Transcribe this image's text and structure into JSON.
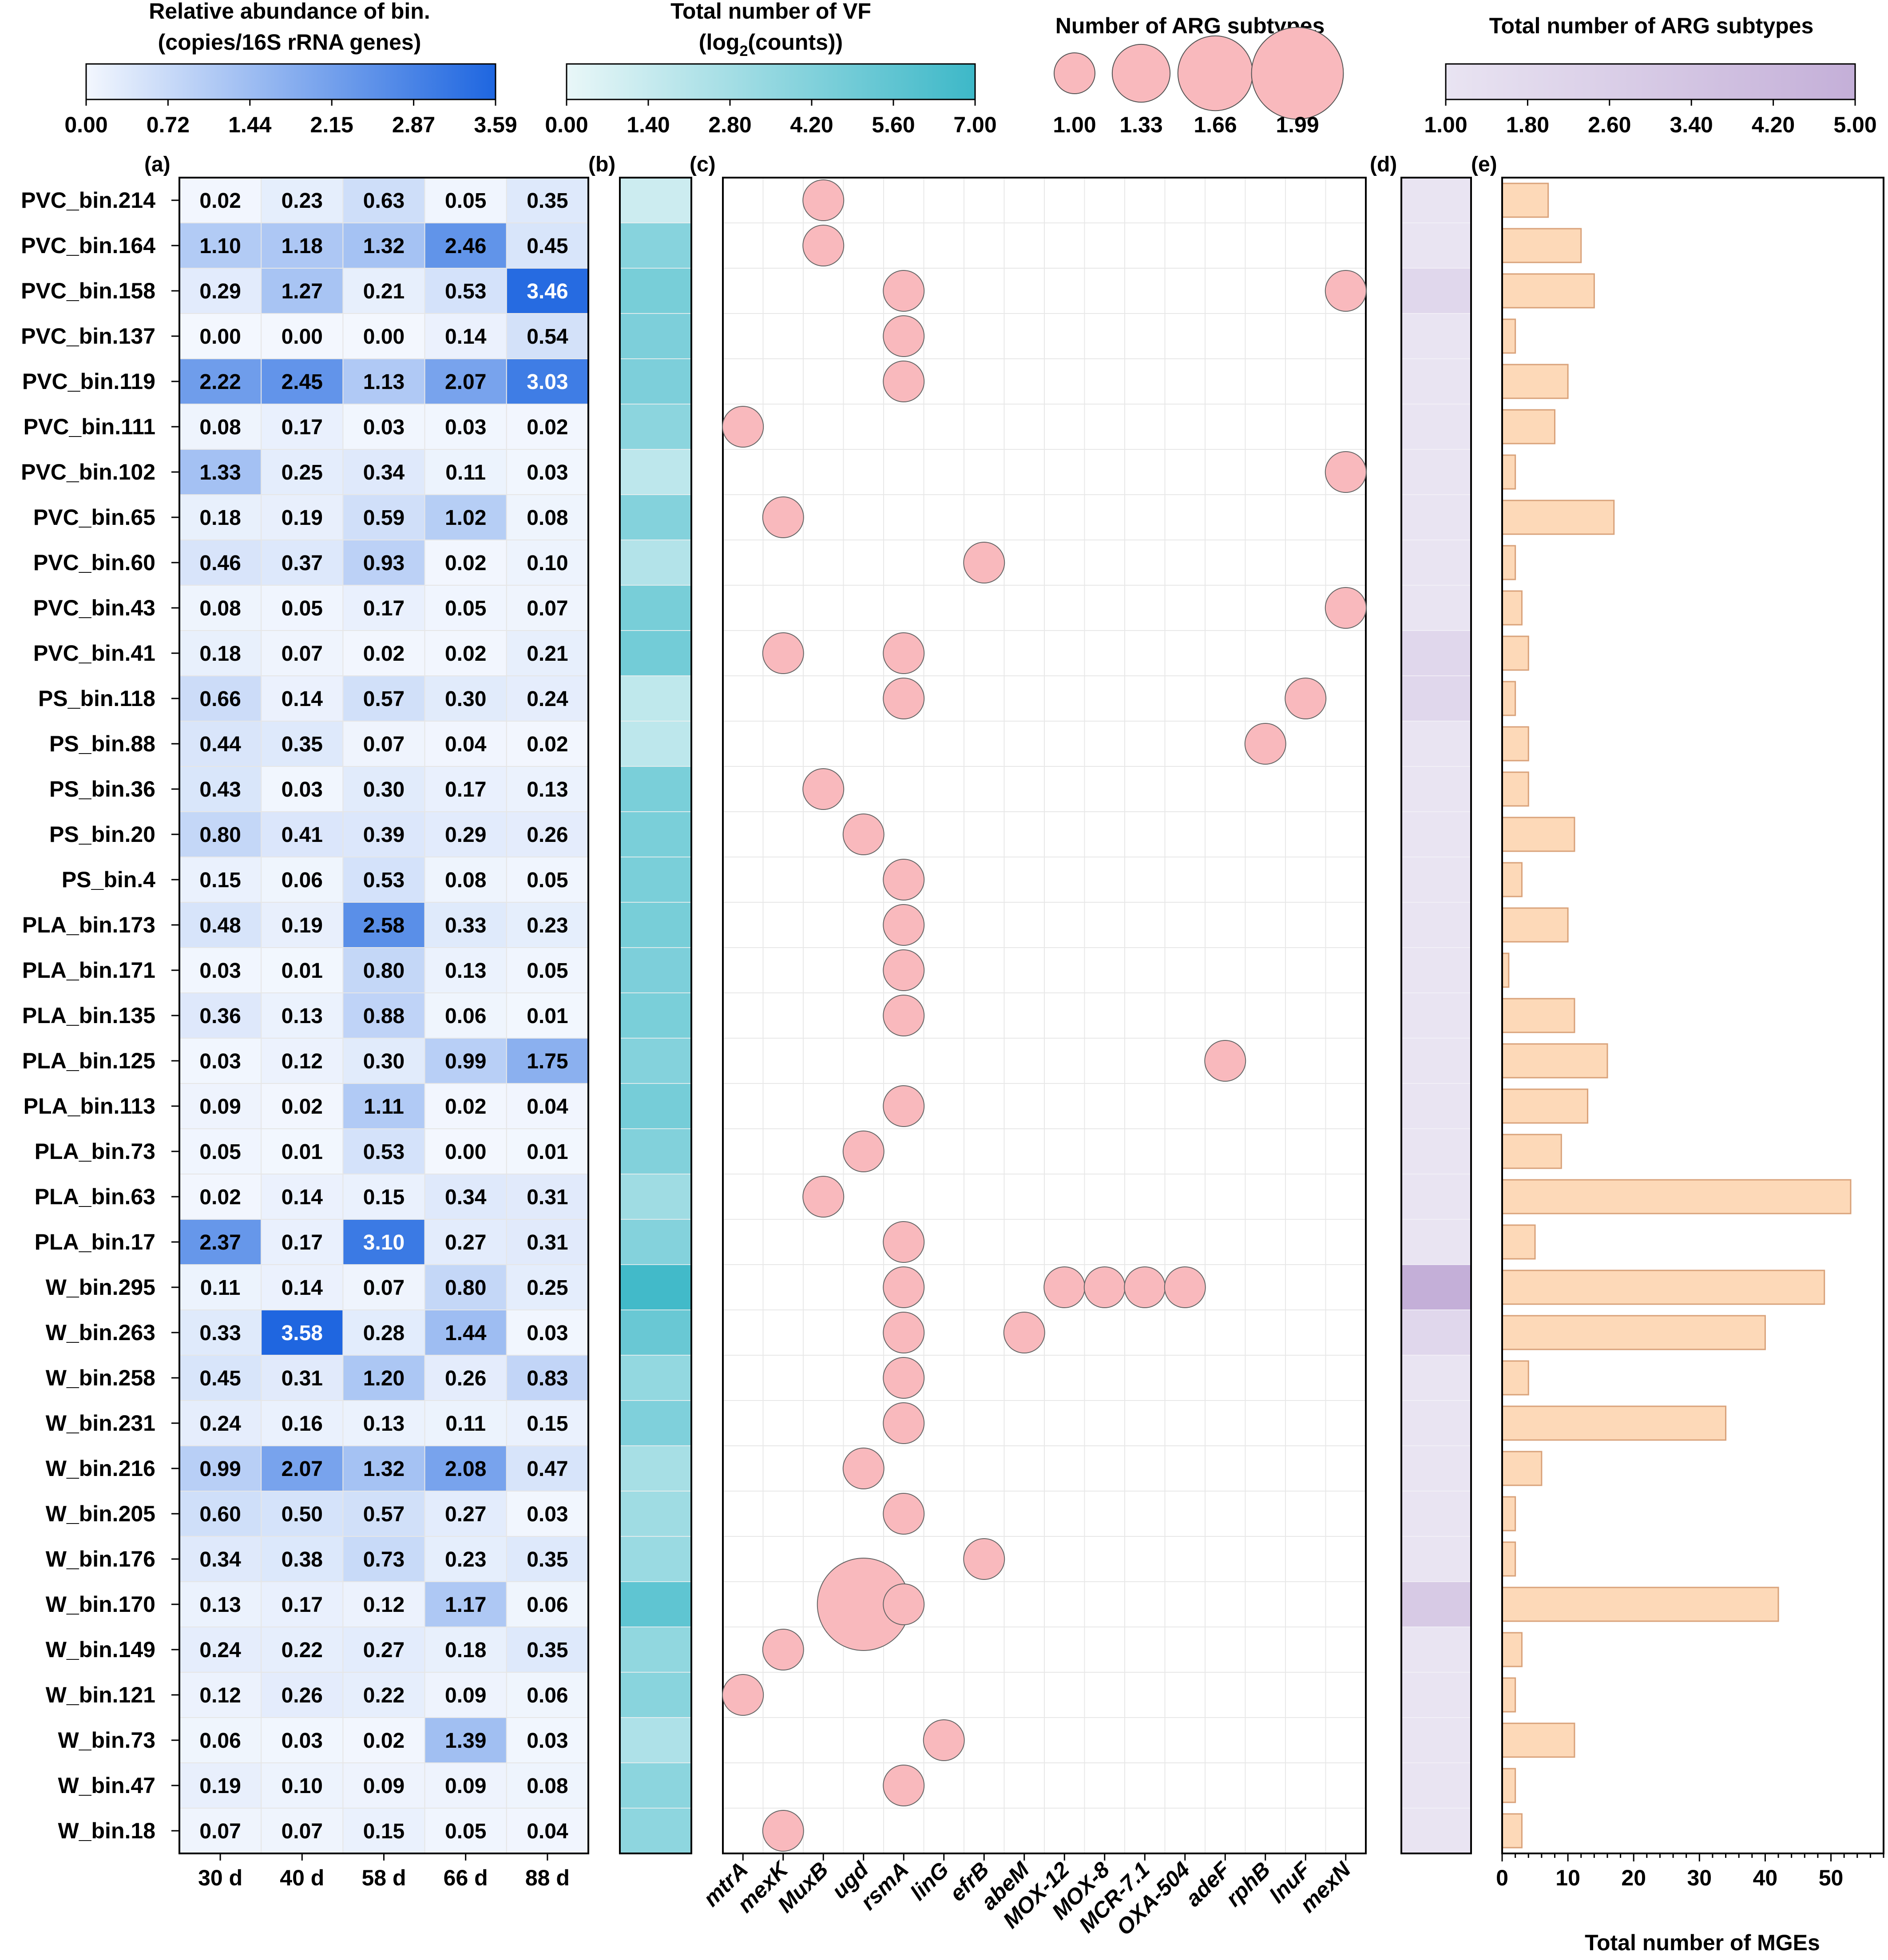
{
  "chart_data": [
    {
      "panel": "(a)",
      "type": "heatmap",
      "legend_title_line1": "Relative abundance of bin.",
      "legend_title_line2": "(copies/16S rRNA genes)",
      "legend_ticks": [
        "0.00",
        "0.72",
        "1.44",
        "2.15",
        "2.87",
        "3.59"
      ],
      "value_range": [
        0.0,
        3.59
      ],
      "color_low": "#f3f7fe",
      "color_high": "#1e66e0",
      "columns": [
        "30 d",
        "40 d",
        "58 d",
        "66 d",
        "88 d"
      ],
      "rows": [
        "PVC_bin.214",
        "PVC_bin.164",
        "PVC_bin.158",
        "PVC_bin.137",
        "PVC_bin.119",
        "PVC_bin.111",
        "PVC_bin.102",
        "PVC_bin.65",
        "PVC_bin.60",
        "PVC_bin.43",
        "PVC_bin.41",
        "PS_bin.118",
        "PS_bin.88",
        "PS_bin.36",
        "PS_bin.20",
        "PS_bin.4",
        "PLA_bin.173",
        "PLA_bin.171",
        "PLA_bin.135",
        "PLA_bin.125",
        "PLA_bin.113",
        "PLA_bin.73",
        "PLA_bin.63",
        "PLA_bin.17",
        "W_bin.295",
        "W_bin.263",
        "W_bin.258",
        "W_bin.231",
        "W_bin.216",
        "W_bin.205",
        "W_bin.176",
        "W_bin.170",
        "W_bin.149",
        "W_bin.121",
        "W_bin.73",
        "W_bin.47",
        "W_bin.18"
      ],
      "values": [
        [
          "0.02",
          "0.23",
          "0.63",
          "0.05",
          "0.35"
        ],
        [
          "1.10",
          "1.18",
          "1.32",
          "2.46",
          "0.45"
        ],
        [
          "0.29",
          "1.27",
          "0.21",
          "0.53",
          "3.46"
        ],
        [
          "0.00",
          "0.00",
          "0.00",
          "0.14",
          "0.54"
        ],
        [
          "2.22",
          "2.45",
          "1.13",
          "2.07",
          "3.03"
        ],
        [
          "0.08",
          "0.17",
          "0.03",
          "0.03",
          "0.02"
        ],
        [
          "1.33",
          "0.25",
          "0.34",
          "0.11",
          "0.03"
        ],
        [
          "0.18",
          "0.19",
          "0.59",
          "1.02",
          "0.08"
        ],
        [
          "0.46",
          "0.37",
          "0.93",
          "0.02",
          "0.10"
        ],
        [
          "0.08",
          "0.05",
          "0.17",
          "0.05",
          "0.07"
        ],
        [
          "0.18",
          "0.07",
          "0.02",
          "0.02",
          "0.21"
        ],
        [
          "0.66",
          "0.14",
          "0.57",
          "0.30",
          "0.24"
        ],
        [
          "0.44",
          "0.35",
          "0.07",
          "0.04",
          "0.02"
        ],
        [
          "0.43",
          "0.03",
          "0.30",
          "0.17",
          "0.13"
        ],
        [
          "0.80",
          "0.41",
          "0.39",
          "0.29",
          "0.26"
        ],
        [
          "0.15",
          "0.06",
          "0.53",
          "0.08",
          "0.05"
        ],
        [
          "0.48",
          "0.19",
          "2.58",
          "0.33",
          "0.23"
        ],
        [
          "0.03",
          "0.01",
          "0.80",
          "0.13",
          "0.05"
        ],
        [
          "0.36",
          "0.13",
          "0.88",
          "0.06",
          "0.01"
        ],
        [
          "0.03",
          "0.12",
          "0.30",
          "0.99",
          "1.75"
        ],
        [
          "0.09",
          "0.02",
          "1.11",
          "0.02",
          "0.04"
        ],
        [
          "0.05",
          "0.01",
          "0.53",
          "0.00",
          "0.01"
        ],
        [
          "0.02",
          "0.14",
          "0.15",
          "0.34",
          "0.31"
        ],
        [
          "2.37",
          "0.17",
          "3.10",
          "0.27",
          "0.31"
        ],
        [
          "0.11",
          "0.14",
          "0.07",
          "0.80",
          "0.25"
        ],
        [
          "0.33",
          "3.58",
          "0.28",
          "1.44",
          "0.03"
        ],
        [
          "0.45",
          "0.31",
          "1.20",
          "0.26",
          "0.83"
        ],
        [
          "0.24",
          "0.16",
          "0.13",
          "0.11",
          "0.15"
        ],
        [
          "0.99",
          "2.07",
          "1.32",
          "2.08",
          "0.47"
        ],
        [
          "0.60",
          "0.50",
          "0.57",
          "0.27",
          "0.03"
        ],
        [
          "0.34",
          "0.38",
          "0.73",
          "0.23",
          "0.35"
        ],
        [
          "0.13",
          "0.17",
          "0.12",
          "1.17",
          "0.06"
        ],
        [
          "0.24",
          "0.22",
          "0.27",
          "0.18",
          "0.35"
        ],
        [
          "0.12",
          "0.26",
          "0.22",
          "0.09",
          "0.06"
        ],
        [
          "0.06",
          "0.03",
          "0.02",
          "1.39",
          "0.03"
        ],
        [
          "0.19",
          "0.10",
          "0.09",
          "0.09",
          "0.08"
        ],
        [
          "0.07",
          "0.07",
          "0.15",
          "0.05",
          "0.04"
        ]
      ]
    },
    {
      "panel": "(b)",
      "type": "heatmap",
      "legend_title_line1": "Total number of VF",
      "legend_title_prefix": "(log",
      "legend_title_sub": "2",
      "legend_title_suffix": "(counts))",
      "legend_ticks": [
        "0.00",
        "1.40",
        "2.80",
        "4.20",
        "5.60",
        "7.00"
      ],
      "value_range": [
        0,
        7
      ],
      "color_low": "#e9f7f8",
      "color_high": "#3db8c8",
      "values": [
        1.2,
        4.0,
        4.6,
        4.4,
        4.4,
        3.8,
        1.8,
        4.1,
        2.2,
        4.6,
        4.8,
        1.7,
        1.8,
        4.5,
        4.5,
        4.5,
        4.6,
        4.4,
        4.5,
        4.1,
        4.7,
        4.2,
        3.0,
        4.1,
        6.8,
        5.2,
        3.5,
        4.3,
        2.7,
        3.0,
        3.2,
        5.6,
        3.6,
        3.9,
        2.4,
        3.8,
        3.7
      ]
    },
    {
      "panel": "(c)",
      "type": "scatter",
      "legend_title": "Number of ARG subtypes",
      "legend_values": [
        1.0,
        1.33,
        1.66,
        1.99
      ],
      "legend_labels": [
        "1.00",
        "1.33",
        "1.66",
        "1.99"
      ],
      "color": "#f9b9bd",
      "genes": [
        "mtrA",
        "mexK",
        "MuxB",
        "ugd",
        "rsmA",
        "linG",
        "efrB",
        "abeM",
        "MOX-12",
        "MOX-8",
        "MCR-7.1",
        "OXA-504",
        "adeF",
        "rphB",
        "lnuF",
        "mexN"
      ],
      "points": [
        {
          "row": 0,
          "gene": 2,
          "n": 1
        },
        {
          "row": 1,
          "gene": 2,
          "n": 1
        },
        {
          "row": 2,
          "gene": 4,
          "n": 1
        },
        {
          "row": 2,
          "gene": 15,
          "n": 1
        },
        {
          "row": 3,
          "gene": 4,
          "n": 1
        },
        {
          "row": 4,
          "gene": 4,
          "n": 1
        },
        {
          "row": 5,
          "gene": 0,
          "n": 1
        },
        {
          "row": 6,
          "gene": 15,
          "n": 1
        },
        {
          "row": 7,
          "gene": 1,
          "n": 1
        },
        {
          "row": 8,
          "gene": 6,
          "n": 1
        },
        {
          "row": 9,
          "gene": 15,
          "n": 1
        },
        {
          "row": 10,
          "gene": 1,
          "n": 1
        },
        {
          "row": 10,
          "gene": 4,
          "n": 1
        },
        {
          "row": 11,
          "gene": 4,
          "n": 1
        },
        {
          "row": 11,
          "gene": 14,
          "n": 1
        },
        {
          "row": 12,
          "gene": 13,
          "n": 1
        },
        {
          "row": 13,
          "gene": 2,
          "n": 1
        },
        {
          "row": 14,
          "gene": 3,
          "n": 1
        },
        {
          "row": 15,
          "gene": 4,
          "n": 1
        },
        {
          "row": 16,
          "gene": 4,
          "n": 1
        },
        {
          "row": 17,
          "gene": 4,
          "n": 1
        },
        {
          "row": 18,
          "gene": 4,
          "n": 1
        },
        {
          "row": 19,
          "gene": 12,
          "n": 1
        },
        {
          "row": 20,
          "gene": 4,
          "n": 1
        },
        {
          "row": 21,
          "gene": 3,
          "n": 1
        },
        {
          "row": 22,
          "gene": 2,
          "n": 1
        },
        {
          "row": 23,
          "gene": 4,
          "n": 1
        },
        {
          "row": 24,
          "gene": 4,
          "n": 1
        },
        {
          "row": 24,
          "gene": 8,
          "n": 1
        },
        {
          "row": 24,
          "gene": 9,
          "n": 1
        },
        {
          "row": 24,
          "gene": 10,
          "n": 1
        },
        {
          "row": 24,
          "gene": 11,
          "n": 1
        },
        {
          "row": 25,
          "gene": 4,
          "n": 1
        },
        {
          "row": 25,
          "gene": 7,
          "n": 1
        },
        {
          "row": 26,
          "gene": 4,
          "n": 1
        },
        {
          "row": 27,
          "gene": 4,
          "n": 1
        },
        {
          "row": 28,
          "gene": 3,
          "n": 1
        },
        {
          "row": 29,
          "gene": 4,
          "n": 1
        },
        {
          "row": 30,
          "gene": 6,
          "n": 1
        },
        {
          "row": 31,
          "gene": 3,
          "n": 2
        },
        {
          "row": 31,
          "gene": 4,
          "n": 1
        },
        {
          "row": 32,
          "gene": 1,
          "n": 1
        },
        {
          "row": 33,
          "gene": 0,
          "n": 1
        },
        {
          "row": 34,
          "gene": 5,
          "n": 1
        },
        {
          "row": 35,
          "gene": 4,
          "n": 1
        },
        {
          "row": 36,
          "gene": 1,
          "n": 1
        }
      ]
    },
    {
      "panel": "(d)",
      "type": "heatmap",
      "legend_title": "Total number of ARG subtypes",
      "legend_ticks": [
        "1.00",
        "1.80",
        "2.60",
        "3.40",
        "4.20",
        "5.00"
      ],
      "value_range": [
        1,
        5
      ],
      "color_low": "#e9e4f2",
      "color_high": "#c4afd8",
      "values": [
        1,
        1,
        2,
        1,
        1,
        1,
        1,
        1,
        1,
        1,
        2,
        2,
        1,
        1,
        1,
        1,
        1,
        1,
        1,
        1,
        1,
        1,
        1,
        1,
        5,
        2,
        1,
        1,
        1,
        1,
        1,
        3,
        1,
        1,
        1,
        1,
        1
      ]
    },
    {
      "panel": "(e)",
      "type": "bar",
      "orientation": "horizontal",
      "xlabel": "Total number of MGEs",
      "xticks": [
        "0",
        "10",
        "20",
        "30",
        "40",
        "50"
      ],
      "xlim": [
        0,
        58
      ],
      "color": "#fdd9b8",
      "edge_color": "#d9a27a",
      "values": [
        7,
        12,
        14,
        2,
        10,
        8,
        2,
        17,
        2,
        3,
        4,
        2,
        4,
        4,
        11,
        3,
        10,
        1,
        11,
        16,
        13,
        9,
        53,
        5,
        49,
        40,
        4,
        34,
        6,
        2,
        2,
        42,
        3,
        2,
        11,
        2,
        3
      ]
    }
  ]
}
